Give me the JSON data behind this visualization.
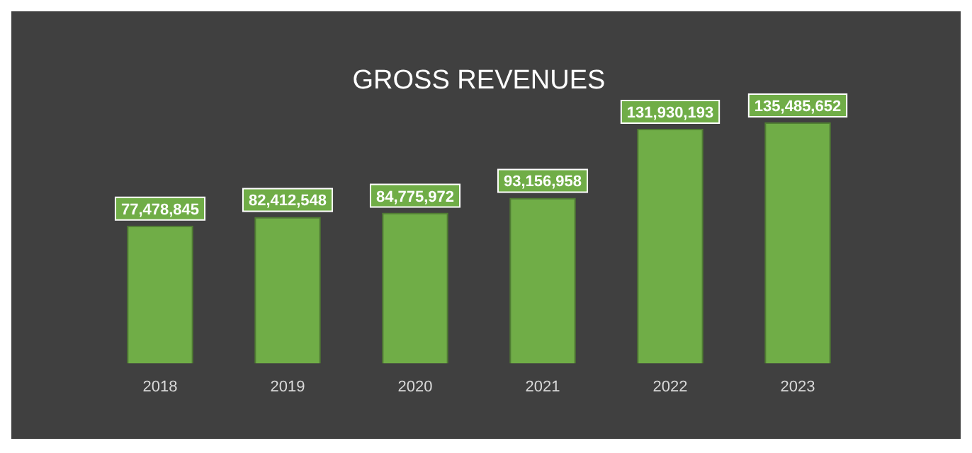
{
  "chart_data": {
    "type": "bar",
    "title": "GROSS REVENUES",
    "categories": [
      "2018",
      "2019",
      "2020",
      "2021",
      "2022",
      "2023"
    ],
    "values": [
      77478845,
      82412548,
      84775972,
      93156958,
      131930193,
      135485652
    ],
    "color": "#70ad47",
    "value_labels": [
      "77,478,845",
      "82,412,548",
      "84,775,972",
      "93,156,958",
      "131,930,193",
      "135,485,652"
    ],
    "grid": false,
    "legend": false
  }
}
